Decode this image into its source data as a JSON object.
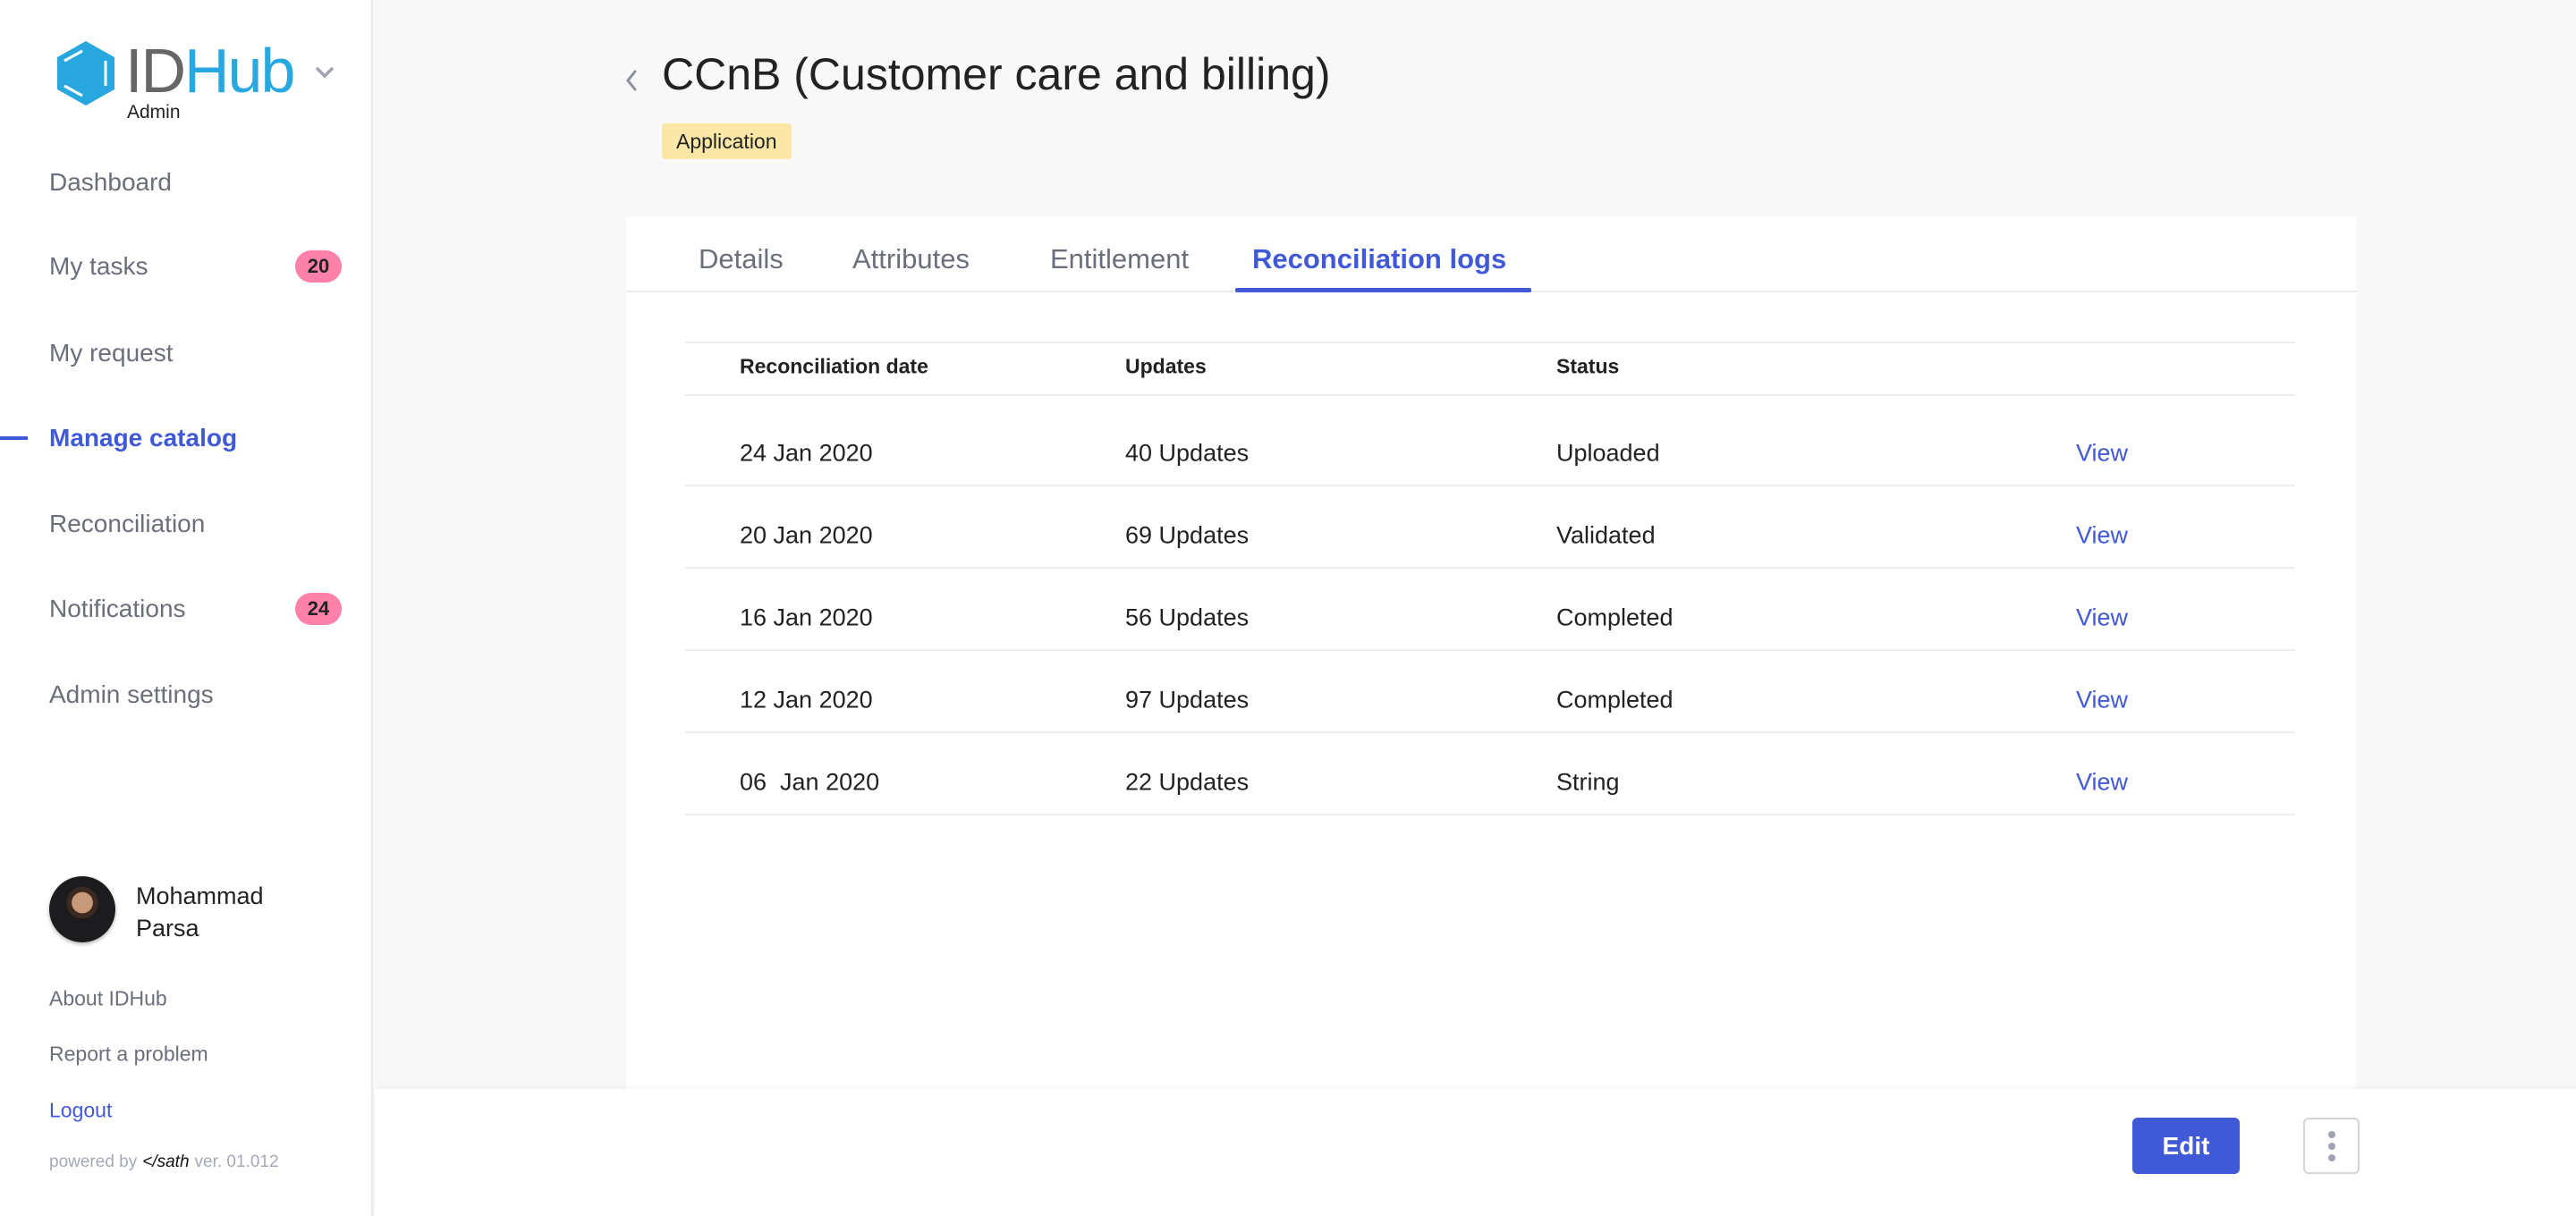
{
  "colors": {
    "accent": "#4059d6",
    "badge": "#ff80a8",
    "type_badge": "#fbe8a6",
    "logo_blue": "#29a8e0"
  },
  "sidebar": {
    "logo": {
      "id": "ID",
      "hub": "Hub",
      "sub": "Admin"
    },
    "items": [
      {
        "label": "Dashboard"
      },
      {
        "label": "My tasks",
        "badge": "20"
      },
      {
        "label": "My request"
      },
      {
        "label": "Manage catalog",
        "active": true
      },
      {
        "label": "Reconciliation"
      },
      {
        "label": "Notifications",
        "badge": "24"
      },
      {
        "label": "Admin settings"
      }
    ],
    "user": {
      "first": "Mohammad",
      "last": "Parsa"
    },
    "links": {
      "about": "About IDHub",
      "report": "Report a problem",
      "logout": "Logout"
    },
    "powered": {
      "prefix": "powered by",
      "brand": "</sath",
      "version": "ver. 01.012"
    }
  },
  "header": {
    "title": "CCnB (Customer care and billing)",
    "type": "Application"
  },
  "tabs": [
    {
      "label": "Details"
    },
    {
      "label": "Attributes"
    },
    {
      "label": "Entitlement"
    },
    {
      "label": "Reconciliation logs",
      "active": true
    }
  ],
  "table": {
    "headers": [
      "Reconciliation date",
      "Updates",
      "Status"
    ],
    "rows": [
      {
        "date": "24 Jan 2020",
        "updates": "40 Updates",
        "status": "Uploaded",
        "action": "View"
      },
      {
        "date": "20 Jan 2020",
        "updates": "69 Updates",
        "status": "Validated",
        "action": "View"
      },
      {
        "date": "16 Jan 2020",
        "updates": "56 Updates",
        "status": "Completed",
        "action": "View"
      },
      {
        "date": "12 Jan 2020",
        "updates": "97 Updates",
        "status": "Completed",
        "action": "View"
      },
      {
        "date": "06  Jan 2020",
        "updates": "22 Updates",
        "status": "String",
        "action": "View"
      }
    ]
  },
  "footer": {
    "edit": "Edit"
  }
}
